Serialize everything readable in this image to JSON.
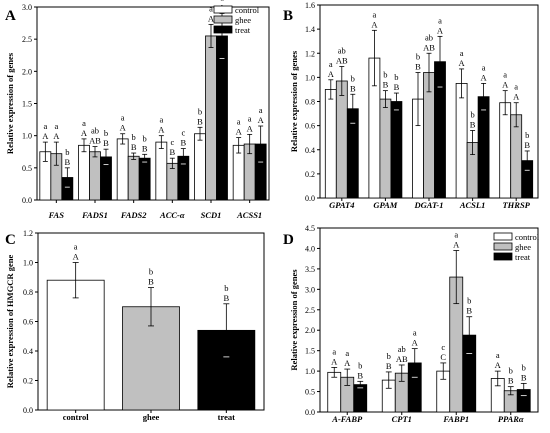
{
  "colors": {
    "control": "#ffffff",
    "ghee": "#c0c0c0",
    "treat": "#000000",
    "axis": "#000000"
  },
  "chart_data": [
    {
      "panel": "A",
      "type": "bar",
      "ylabel": "Relative expression of genes",
      "ylim": [
        0,
        3.0
      ],
      "yticks": [
        "0.0",
        "0.5",
        "1.0",
        "1.5",
        "2.0",
        "2.5",
        "3.0"
      ],
      "categories": [
        "FAS",
        "FADS1",
        "FADS2",
        "ACC-α",
        "SCD1",
        "ACSS1"
      ],
      "legend": [
        "control",
        "ghee",
        "treat"
      ],
      "legend_position": "top-right",
      "series": [
        {
          "name": "control",
          "values": [
            0.75,
            0.85,
            0.95,
            0.9,
            1.03,
            0.85
          ],
          "errors": [
            0.15,
            0.1,
            0.08,
            0.1,
            0.1,
            0.12
          ]
        },
        {
          "name": "ghee",
          "values": [
            0.72,
            0.75,
            0.68,
            0.57,
            2.55,
            0.87
          ],
          "errors": [
            0.18,
            0.08,
            0.05,
            0.08,
            0.18,
            0.15
          ]
        },
        {
          "name": "treat",
          "values": [
            0.35,
            0.67,
            0.65,
            0.68,
            2.55,
            0.87
          ],
          "errors": [
            0.15,
            0.12,
            0.06,
            0.12,
            0.35,
            0.28
          ]
        }
      ],
      "annotations": [
        [
          "a\nA",
          "a\nA",
          "b\nB"
        ],
        [
          "a\nA",
          "ab\nAB",
          "b\nB"
        ],
        [
          "a\nA",
          "b\nB",
          "b\nB"
        ],
        [
          "a\nA",
          "c\nB",
          "c\nB"
        ],
        [
          "b\nB",
          "a\nA",
          "a\nA"
        ],
        [
          "a\nA",
          "a\nA",
          "a\nA"
        ]
      ]
    },
    {
      "panel": "B",
      "type": "bar",
      "ylabel": "Relative expression of genes",
      "ylim": [
        0,
        1.6
      ],
      "yticks": [
        "0.0",
        "0.2",
        "0.4",
        "0.6",
        "0.8",
        "1.0",
        "1.2",
        "1.4",
        "1.6"
      ],
      "categories": [
        "GPAT4",
        "GPAM",
        "DGAT-1",
        "ACSL1",
        "THRSP"
      ],
      "legend": [],
      "series": [
        {
          "name": "control",
          "values": [
            0.9,
            1.16,
            0.82,
            0.95,
            0.79
          ],
          "errors": [
            0.08,
            0.23,
            0.22,
            0.12,
            0.1
          ]
        },
        {
          "name": "ghee",
          "values": [
            0.97,
            0.82,
            1.04,
            0.46,
            0.69
          ],
          "errors": [
            0.12,
            0.07,
            0.16,
            0.1,
            0.1
          ]
        },
        {
          "name": "treat",
          "values": [
            0.74,
            0.8,
            1.13,
            0.84,
            0.31
          ],
          "errors": [
            0.12,
            0.07,
            0.21,
            0.11,
            0.08
          ]
        }
      ],
      "annotations": [
        [
          "a\nA",
          "ab\nAB",
          "b\nB"
        ],
        [
          "a\nA",
          "b\nB",
          "b\nB"
        ],
        [
          "b\nB",
          "ab\nAB",
          "a\nA"
        ],
        [
          "a\nA",
          "b\nB",
          "a\nA"
        ],
        [
          "a\nA",
          "a\nA",
          "b\nB"
        ]
      ]
    },
    {
      "panel": "C",
      "type": "bar",
      "ylabel": "Relative expression of HMGCR gene",
      "ylim": [
        0,
        1.2
      ],
      "yticks": [
        "0.0",
        "0.2",
        "0.4",
        "0.6",
        "0.8",
        "1.0",
        "1.2"
      ],
      "categories": [
        "control",
        "ghee",
        "treat"
      ],
      "legend": [],
      "series": [
        {
          "name": "expression",
          "values": [
            0.88,
            0.7,
            0.54
          ],
          "errors": [
            0.12,
            0.13,
            0.18
          ]
        }
      ],
      "annotations": [
        [
          "a\nA"
        ],
        [
          "b\nB"
        ],
        [
          "b\nB"
        ]
      ]
    },
    {
      "panel": "D",
      "type": "bar",
      "ylabel": "Relative expression of genes",
      "ylim": [
        0,
        4.5
      ],
      "yticks": [
        "0.0",
        "0.5",
        "1.0",
        "1.5",
        "2.0",
        "2.5",
        "3.0",
        "3.5",
        "4.0",
        "4.5"
      ],
      "categories": [
        "A-FABP",
        "CPT1",
        "FABP1",
        "PPARα"
      ],
      "legend": [
        "control",
        "ghee",
        "treat"
      ],
      "legend_position": "top-right",
      "series": [
        {
          "name": "control",
          "values": [
            0.97,
            0.78,
            1.0,
            0.82
          ],
          "errors": [
            0.12,
            0.2,
            0.2,
            0.18
          ]
        },
        {
          "name": "ghee",
          "values": [
            0.85,
            0.95,
            3.3,
            0.52
          ],
          "errors": [
            0.2,
            0.2,
            0.65,
            0.1
          ]
        },
        {
          "name": "treat",
          "values": [
            0.67,
            1.2,
            1.88,
            0.55
          ],
          "errors": [
            0.08,
            0.35,
            0.45,
            0.15
          ]
        }
      ],
      "annotations": [
        [
          "a\nA",
          "a\nA",
          "b\nB"
        ],
        [
          "b\nB",
          "ab\nAB",
          "a\nA"
        ],
        [
          "c\nC",
          "a\nA",
          "b\nB"
        ],
        [
          "a\nA",
          "b\nB",
          "b\nB"
        ]
      ]
    }
  ]
}
